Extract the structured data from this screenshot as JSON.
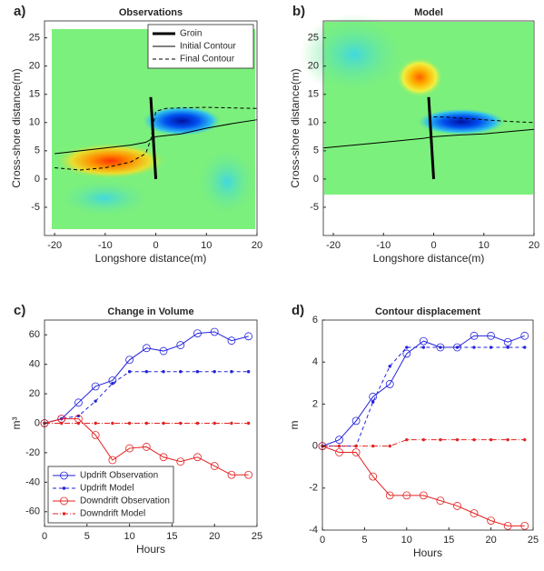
{
  "chart_data": [
    {
      "type": "line",
      "label": "a)",
      "title": "Observations",
      "xlabel": "Longshore distance(m)",
      "ylabel": "Cross-shore distance(m)",
      "xlim": [
        -22,
        20
      ],
      "ylim": [
        -10,
        28
      ],
      "xticks": [
        -20,
        -10,
        0,
        10,
        20
      ],
      "yticks": [
        -5,
        0,
        5,
        10,
        15,
        20,
        25
      ],
      "legend": "upper right",
      "series": [
        {
          "name": "Groin",
          "color": "#000000",
          "linewidth": 3,
          "dash": "solid",
          "x": [
            0,
            -1
          ],
          "values": [
            0,
            14.5
          ]
        },
        {
          "name": "Initial Contour",
          "color": "#000000",
          "linewidth": 1,
          "dash": "solid",
          "x": [
            -20,
            -15,
            -10,
            -5,
            -2,
            0,
            5,
            10,
            15,
            20
          ],
          "values": [
            4.5,
            5,
            5.5,
            6,
            6.5,
            7.5,
            8,
            9,
            9.8,
            10.5
          ]
        },
        {
          "name": "Final Contour",
          "color": "#000000",
          "linewidth": 1,
          "dash": "dashed",
          "x": [
            -20,
            -15,
            -10,
            -5,
            -2,
            -1,
            0,
            2,
            5,
            10,
            15,
            20
          ],
          "values": [
            2,
            1.6,
            2,
            3,
            4.5,
            7,
            12,
            12.5,
            12.6,
            12.7,
            12.6,
            12.5
          ]
        }
      ]
    },
    {
      "type": "line",
      "label": "b)",
      "title": "Model",
      "xlabel": "Longshore distance(m)",
      "ylabel": "Cross-shore distance(m)",
      "xlim": [
        -22,
        20
      ],
      "ylim": [
        -10,
        28
      ],
      "xticks": [
        -20,
        -10,
        0,
        10,
        20
      ],
      "yticks": [
        -5,
        0,
        5,
        10,
        15,
        20,
        25
      ],
      "series": [
        {
          "color": "#000000",
          "linewidth": 3,
          "dash": "solid",
          "x": [
            0,
            -1
          ],
          "values": [
            0,
            14.5
          ]
        },
        {
          "color": "#000000",
          "linewidth": 1,
          "dash": "solid",
          "x": [
            -22,
            -10,
            -2,
            0,
            5,
            10,
            20
          ],
          "values": [
            5.5,
            6.5,
            7.2,
            7.5,
            7.8,
            8,
            8.8
          ]
        },
        {
          "color": "#000000",
          "linewidth": 1,
          "dash": "dashed",
          "x": [
            0,
            2,
            5,
            10,
            15,
            20
          ],
          "values": [
            11,
            11,
            10.8,
            10.5,
            10.2,
            10
          ]
        }
      ]
    },
    {
      "type": "line",
      "label": "c)",
      "title": "Change in Volume",
      "xlabel": "Hours",
      "ylabel": "m³",
      "xlim": [
        0,
        25
      ],
      "ylim": [
        -70,
        70
      ],
      "xticks": [
        0,
        5,
        10,
        15,
        20,
        25
      ],
      "yticks": [
        -60,
        -40,
        -20,
        0,
        20,
        40,
        60
      ],
      "legend": "lower left",
      "x": [
        0,
        2,
        4,
        6,
        8,
        10,
        12,
        14,
        16,
        18,
        20,
        22,
        24
      ],
      "series": [
        {
          "name": "Updrift Observation",
          "color": "#2222dd",
          "linewidth": 1,
          "dash": "solid",
          "marker": "o",
          "values": [
            0,
            3,
            14,
            25,
            29,
            43,
            51,
            49,
            53,
            61,
            62,
            56,
            59
          ]
        },
        {
          "name": "Updrift Model",
          "color": "#2222dd",
          "linewidth": 1,
          "dash": "dashed",
          "marker": ".",
          "values": [
            0,
            3,
            5,
            15,
            27,
            35,
            35,
            35,
            35,
            35,
            35,
            35,
            35
          ]
        },
        {
          "name": "Downdrift Observation",
          "color": "#e52222",
          "linewidth": 1,
          "dash": "solid",
          "marker": "o",
          "values": [
            0,
            3,
            3,
            -8,
            -25,
            -17,
            -16,
            -23,
            -26,
            -23,
            -29,
            -35,
            -35
          ]
        },
        {
          "name": "Downdrift Model",
          "color": "#e52222",
          "linewidth": 1,
          "dash": "dashdot",
          "marker": ".",
          "values": [
            0,
            0,
            0,
            0,
            0,
            0,
            0,
            0,
            0,
            0,
            0,
            0,
            0
          ]
        }
      ]
    },
    {
      "type": "line",
      "label": "d)",
      "title": "Contour displacement",
      "xlabel": "Hours",
      "ylabel": "m",
      "xlim": [
        0,
        25
      ],
      "ylim": [
        -4,
        6
      ],
      "xticks": [
        0,
        5,
        10,
        15,
        20,
        25
      ],
      "yticks": [
        -4,
        -2,
        0,
        2,
        4,
        6
      ],
      "x": [
        0,
        2,
        4,
        6,
        8,
        10,
        12,
        14,
        16,
        18,
        20,
        22,
        24
      ],
      "series": [
        {
          "color": "#2222dd",
          "linewidth": 1,
          "dash": "solid",
          "marker": "o",
          "values": [
            0,
            0.3,
            1.2,
            2.35,
            2.95,
            4.4,
            5,
            4.7,
            4.7,
            5.25,
            5.25,
            4.95,
            5.25
          ]
        },
        {
          "color": "#2222dd",
          "linewidth": 1,
          "dash": "dashed",
          "marker": ".",
          "values": [
            0,
            0,
            0,
            2.1,
            3.8,
            4.7,
            4.7,
            4.7,
            4.7,
            4.7,
            4.7,
            4.7,
            4.7
          ]
        },
        {
          "color": "#e52222",
          "linewidth": 1,
          "dash": "solid",
          "marker": "o",
          "values": [
            0,
            -0.3,
            -0.3,
            -1.45,
            -2.35,
            -2.35,
            -2.35,
            -2.6,
            -2.85,
            -3.2,
            -3.55,
            -3.8,
            -3.8
          ]
        },
        {
          "color": "#e52222",
          "linewidth": 1,
          "dash": "dashdot",
          "marker": ".",
          "values": [
            0,
            0,
            0,
            0,
            0,
            0.3,
            0.3,
            0.3,
            0.3,
            0.3,
            0.3,
            0.3,
            0.3
          ]
        }
      ]
    }
  ]
}
